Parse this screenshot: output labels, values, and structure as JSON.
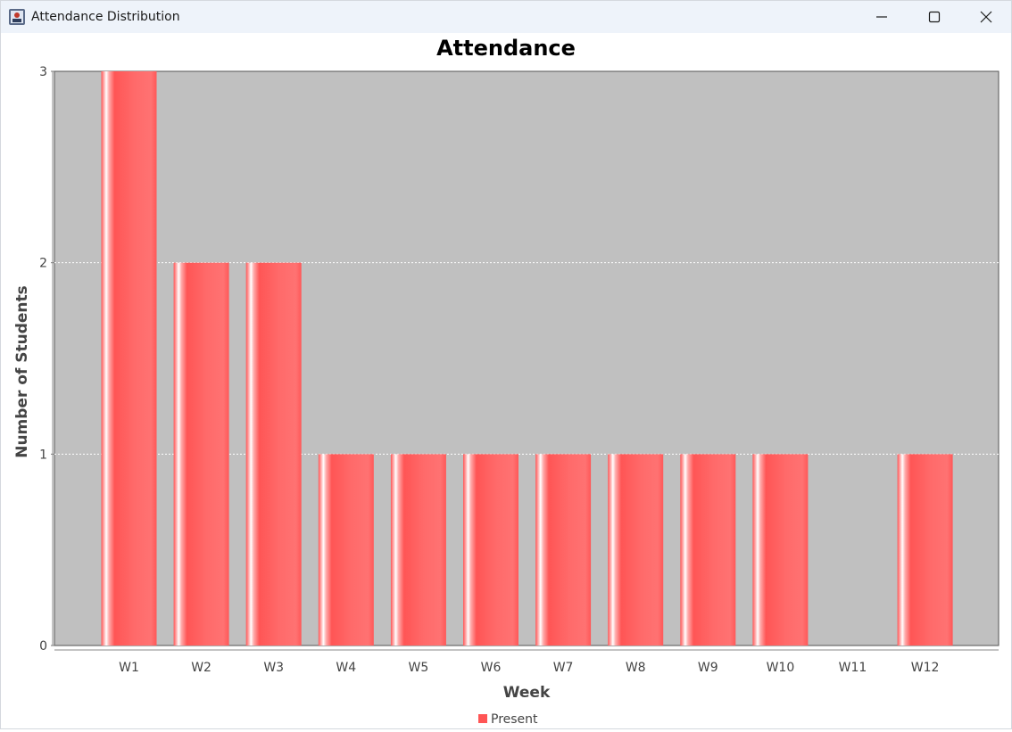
{
  "window": {
    "title": "Attendance Distribution"
  },
  "icons": {
    "app": "java-app-icon",
    "minimize": "minimize-icon",
    "maximize": "maximize-icon",
    "close": "close-icon"
  },
  "chart_data": {
    "type": "bar",
    "title": "Attendance",
    "xlabel": "Week",
    "ylabel": "Number of Students",
    "categories": [
      "W1",
      "W2",
      "W3",
      "W4",
      "W5",
      "W6",
      "W7",
      "W8",
      "W9",
      "W10",
      "W11",
      "W12"
    ],
    "series": [
      {
        "name": "Present",
        "color": "#ff5555",
        "values": [
          3,
          2,
          2,
          1,
          1,
          1,
          1,
          1,
          1,
          1,
          0,
          1
        ]
      }
    ],
    "ylim": [
      0,
      3
    ],
    "yticks": [
      "0",
      "1",
      "2",
      "3"
    ],
    "grid": true,
    "legend_position": "bottom-center",
    "plot_background": "#c0c0c0"
  }
}
